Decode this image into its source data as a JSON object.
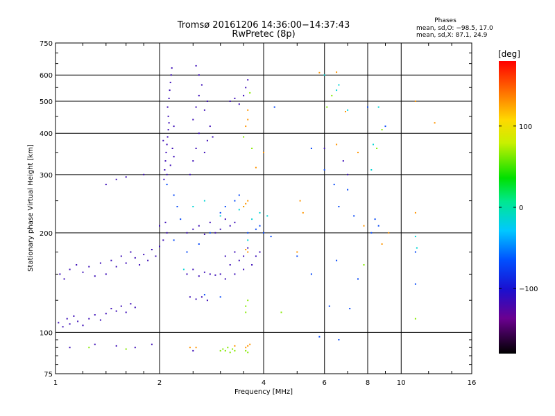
{
  "chart_data": {
    "type": "scatter",
    "title": "Tromsø 20161206 14:36:00−14:37:43",
    "subtitle": "RwPretec (8p)",
    "xlabel": "Frequency [MHz]",
    "ylabel": "Stationary phase Virtual Height [km]",
    "x_scale": "log",
    "y_scale": "log",
    "xlim": [
      1,
      16
    ],
    "ylim": [
      75,
      750
    ],
    "x_ticks": [
      1,
      2,
      4,
      6,
      8,
      10,
      16
    ],
    "y_ticks": [
      75,
      100,
      200,
      300,
      400,
      500,
      600,
      750
    ],
    "grid": true,
    "phases_box": {
      "title": "Phases",
      "line1": "mean, sd,O: −98.5, 17.0",
      "line2": "mean, sd,X:  87.1, 24.9"
    },
    "colorbar": {
      "label": "[deg]",
      "range": [
        -180,
        180
      ],
      "ticks": [
        100,
        0,
        -100
      ],
      "tick_labels": [
        "100",
        "0",
        "−100"
      ]
    },
    "series": [
      {
        "color_deg": -115,
        "points": [
          [
            1.02,
            107
          ],
          [
            1.05,
            104
          ],
          [
            1.08,
            110
          ],
          [
            1.1,
            106
          ],
          [
            1.13,
            112
          ],
          [
            1.16,
            108
          ],
          [
            1.2,
            105
          ],
          [
            1.25,
            110
          ],
          [
            1.3,
            113
          ],
          [
            1.35,
            109
          ],
          [
            1.4,
            114
          ],
          [
            1.45,
            118
          ],
          [
            1.5,
            116
          ],
          [
            1.55,
            120
          ],
          [
            1.6,
            115
          ],
          [
            1.65,
            122
          ],
          [
            1.7,
            119
          ],
          [
            1.03,
            150
          ],
          [
            1.06,
            145
          ],
          [
            1.1,
            155
          ],
          [
            1.15,
            160
          ],
          [
            1.2,
            152
          ],
          [
            1.25,
            158
          ],
          [
            1.3,
            148
          ],
          [
            1.35,
            162
          ],
          [
            1.4,
            150
          ],
          [
            1.45,
            165
          ],
          [
            1.5,
            158
          ],
          [
            1.55,
            170
          ],
          [
            1.6,
            162
          ],
          [
            1.65,
            175
          ],
          [
            1.7,
            168
          ],
          [
            1.75,
            160
          ],
          [
            1.8,
            172
          ],
          [
            1.85,
            165
          ],
          [
            1.9,
            178
          ],
          [
            1.95,
            170
          ],
          [
            2.0,
            182
          ],
          [
            2.05,
            190
          ],
          [
            2.1,
            200
          ],
          [
            2.0,
            210
          ],
          [
            2.08,
            215
          ],
          [
            2.06,
            290
          ],
          [
            2.07,
            310
          ],
          [
            2.08,
            330
          ],
          [
            2.09,
            350
          ],
          [
            2.1,
            370
          ],
          [
            2.11,
            390
          ],
          [
            2.12,
            410
          ],
          [
            2.13,
            430
          ],
          [
            2.12,
            450
          ],
          [
            2.11,
            480
          ],
          [
            2.13,
            510
          ],
          [
            2.14,
            540
          ],
          [
            2.15,
            570
          ],
          [
            2.16,
            600
          ],
          [
            2.17,
            630
          ],
          [
            2.1,
            300
          ],
          [
            2.15,
            320
          ],
          [
            2.2,
            340
          ],
          [
            2.18,
            360
          ],
          [
            2.05,
            380
          ],
          [
            2.2,
            420
          ],
          [
            2.45,
            300
          ],
          [
            2.5,
            330
          ],
          [
            2.55,
            360
          ],
          [
            2.6,
            400
          ],
          [
            2.5,
            440
          ],
          [
            2.55,
            480
          ],
          [
            2.6,
            520
          ],
          [
            2.65,
            560
          ],
          [
            2.6,
            600
          ],
          [
            2.55,
            640
          ],
          [
            2.7,
            350
          ],
          [
            2.75,
            380
          ],
          [
            2.8,
            420
          ],
          [
            2.7,
            470
          ],
          [
            2.75,
            500
          ],
          [
            2.85,
            390
          ],
          [
            2.4,
            150
          ],
          [
            2.5,
            155
          ],
          [
            2.6,
            148
          ],
          [
            2.7,
            152
          ],
          [
            2.8,
            150
          ],
          [
            2.9,
            149
          ],
          [
            2.4,
            200
          ],
          [
            2.5,
            205
          ],
          [
            2.6,
            210
          ],
          [
            2.7,
            198
          ],
          [
            2.8,
            215
          ],
          [
            2.9,
            200
          ],
          [
            3.0,
            205
          ],
          [
            3.1,
            220
          ],
          [
            3.2,
            210
          ],
          [
            3.3,
            215
          ],
          [
            3.1,
            170
          ],
          [
            3.2,
            160
          ],
          [
            3.3,
            175
          ],
          [
            3.4,
            165
          ],
          [
            3.5,
            170
          ],
          [
            3.6,
            180
          ],
          [
            3.0,
            150
          ],
          [
            3.1,
            145
          ],
          [
            3.3,
            150
          ],
          [
            3.5,
            155
          ],
          [
            3.7,
            160
          ],
          [
            3.8,
            170
          ],
          [
            3.9,
            175
          ],
          [
            3.2,
            500
          ],
          [
            3.3,
            510
          ],
          [
            3.4,
            490
          ],
          [
            3.5,
            520
          ],
          [
            3.55,
            550
          ],
          [
            3.6,
            580
          ],
          [
            2.45,
            128
          ],
          [
            2.55,
            126
          ],
          [
            2.65,
            128
          ],
          [
            2.75,
            125
          ],
          [
            1.4,
            280
          ],
          [
            1.5,
            290
          ],
          [
            1.6,
            295
          ],
          [
            1.8,
            300
          ],
          [
            1.1,
            90
          ],
          [
            1.3,
            92
          ],
          [
            1.5,
            91
          ],
          [
            1.7,
            90
          ],
          [
            1.9,
            92
          ],
          [
            2.5,
            88
          ],
          [
            6.0,
            360
          ],
          [
            6.8,
            330
          ],
          [
            7.0,
            300
          ]
        ]
      },
      {
        "color_deg": -70,
        "points": [
          [
            2.1,
            280
          ],
          [
            2.2,
            260
          ],
          [
            2.25,
            240
          ],
          [
            2.3,
            220
          ],
          [
            2.2,
            190
          ],
          [
            2.4,
            175
          ],
          [
            2.6,
            185
          ],
          [
            2.8,
            200
          ],
          [
            3.0,
            230
          ],
          [
            3.1,
            240
          ],
          [
            3.3,
            250
          ],
          [
            3.4,
            260
          ],
          [
            3.6,
            200
          ],
          [
            3.8,
            205
          ],
          [
            3.9,
            210
          ],
          [
            4.0,
            200
          ],
          [
            4.2,
            195
          ],
          [
            5.0,
            170
          ],
          [
            5.5,
            150
          ],
          [
            6.5,
            165
          ],
          [
            7.5,
            145
          ],
          [
            8.2,
            200
          ],
          [
            8.4,
            220
          ],
          [
            8.6,
            210
          ],
          [
            2.7,
            130
          ],
          [
            3.0,
            128
          ],
          [
            4.3,
            480
          ],
          [
            5.5,
            360
          ],
          [
            6.0,
            310
          ],
          [
            6.4,
            280
          ],
          [
            6.6,
            240
          ],
          [
            7.0,
            270
          ],
          [
            7.3,
            225
          ],
          [
            8.0,
            480
          ],
          [
            9.0,
            420
          ],
          [
            11.0,
            175
          ],
          [
            11.0,
            140
          ],
          [
            6.2,
            120
          ],
          [
            7.1,
            118
          ],
          [
            5.8,
            97
          ],
          [
            6.6,
            95
          ]
        ]
      },
      {
        "color_deg": -15,
        "points": [
          [
            2.5,
            240
          ],
          [
            2.7,
            250
          ],
          [
            3.0,
            225
          ],
          [
            3.4,
            235
          ],
          [
            3.5,
            240
          ],
          [
            3.7,
            220
          ],
          [
            3.9,
            230
          ],
          [
            4.1,
            225
          ],
          [
            6.0,
            600
          ],
          [
            6.6,
            560
          ],
          [
            6.5,
            540
          ],
          [
            7.0,
            470
          ],
          [
            8.2,
            310
          ],
          [
            8.3,
            370
          ],
          [
            8.6,
            480
          ],
          [
            11.0,
            195
          ],
          [
            11.1,
            180
          ],
          [
            3.6,
            190
          ],
          [
            2.35,
            155
          ]
        ]
      },
      {
        "color_deg": 65,
        "points": [
          [
            3.0,
            88
          ],
          [
            3.05,
            89
          ],
          [
            3.1,
            88
          ],
          [
            3.15,
            90
          ],
          [
            3.2,
            87
          ],
          [
            3.25,
            89
          ],
          [
            3.3,
            88
          ],
          [
            3.55,
            88
          ],
          [
            3.6,
            87
          ],
          [
            1.25,
            90
          ],
          [
            1.6,
            89
          ],
          [
            3.5,
            390
          ],
          [
            3.7,
            360
          ],
          [
            3.65,
            530
          ],
          [
            6.3,
            520
          ],
          [
            6.1,
            480
          ],
          [
            7.8,
            160
          ],
          [
            8.5,
            360
          ],
          [
            8.8,
            410
          ],
          [
            11.0,
            110
          ],
          [
            4.5,
            115
          ],
          [
            3.55,
            120
          ],
          [
            3.6,
            125
          ],
          [
            3.55,
            115
          ]
        ]
      },
      {
        "color_deg": 130,
        "points": [
          [
            3.55,
            90
          ],
          [
            3.6,
            91
          ],
          [
            3.65,
            92
          ],
          [
            3.5,
            240
          ],
          [
            3.55,
            245
          ],
          [
            3.6,
            250
          ],
          [
            3.55,
            178
          ],
          [
            3.6,
            175
          ],
          [
            3.6,
            470
          ],
          [
            3.55,
            420
          ],
          [
            3.6,
            440
          ],
          [
            5.0,
            175
          ],
          [
            5.1,
            250
          ],
          [
            5.8,
            610
          ],
          [
            6.5,
            370
          ],
          [
            6.5,
            612
          ],
          [
            6.9,
            465
          ],
          [
            7.5,
            350
          ],
          [
            8.8,
            185
          ],
          [
            9.2,
            200
          ],
          [
            11.0,
            230
          ],
          [
            11.0,
            500
          ],
          [
            12.5,
            430
          ],
          [
            4.0,
            350
          ],
          [
            3.8,
            315
          ],
          [
            5.2,
            230
          ],
          [
            2.45,
            90
          ],
          [
            2.55,
            90
          ],
          [
            3.3,
            91
          ],
          [
            7.8,
            210
          ]
        ]
      }
    ]
  }
}
